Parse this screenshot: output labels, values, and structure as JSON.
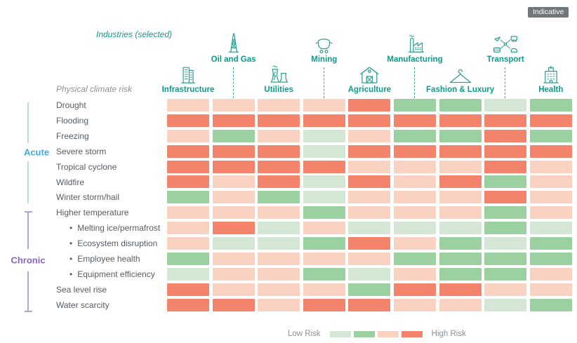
{
  "badge_label": "Indicative",
  "header": {
    "industries_label": "Industries (selected)",
    "risk_label": "Physical climate risk"
  },
  "industries": [
    {
      "name": "Infrastructure",
      "icon": "infrastructure-building-icon",
      "tier": "lower",
      "col": 1
    },
    {
      "name": "Oil and Gas",
      "icon": "oil-derrick-icon",
      "tier": "upper",
      "col": 2
    },
    {
      "name": "Utilities",
      "icon": "power-plant-icon",
      "tier": "lower",
      "col": 3
    },
    {
      "name": "Mining",
      "icon": "mine-cart-icon",
      "tier": "upper",
      "col": 4
    },
    {
      "name": "Agriculture",
      "icon": "barn-icon",
      "tier": "lower",
      "col": 5
    },
    {
      "name": "Manufacturing",
      "icon": "factory-icon",
      "tier": "upper",
      "col": 6
    },
    {
      "name": "Fashion & Luxury",
      "icon": "hanger-icon",
      "tier": "lower",
      "col": 7
    },
    {
      "name": "Transport",
      "icon": "transport-network-icon",
      "tier": "upper",
      "col": 8
    },
    {
      "name": "Health",
      "icon": "hospital-icon",
      "tier": "lower",
      "col": 9
    }
  ],
  "groups": [
    {
      "name": "Acute",
      "text_color": "#42a9dc",
      "line_color": "#bcd9e6",
      "rows": "1-7"
    },
    {
      "name": "Chronic",
      "text_color": "#8a63c1",
      "line_color": "#b7a3d8",
      "rows": "8-14"
    }
  ],
  "risk_levels": {
    "1": "#d4e7d4",
    "2": "#9bd0a0",
    "3": "#fad2c2",
    "4": "#f3836b"
  },
  "chart_data": {
    "type": "heatmap",
    "title": "",
    "note": "Indicative",
    "columns": [
      "Infrastructure",
      "Oil and Gas",
      "Utilities",
      "Mining",
      "Agriculture",
      "Manufacturing",
      "Fashion & Luxury",
      "Transport",
      "Health"
    ],
    "value_scale": "1 = lowest risk (pale green), 2 = low risk (green), 3 = elevated risk (pale salmon), 4 = highest risk (salmon red)",
    "rows": [
      {
        "label": "Drought",
        "group": "Acute",
        "indent": false,
        "values": [
          3,
          3,
          3,
          3,
          4,
          2,
          2,
          1,
          2
        ]
      },
      {
        "label": "Flooding",
        "group": "Acute",
        "indent": false,
        "values": [
          4,
          4,
          4,
          4,
          4,
          4,
          4,
          4,
          4
        ]
      },
      {
        "label": "Freezing",
        "group": "Acute",
        "indent": false,
        "values": [
          3,
          2,
          3,
          1,
          3,
          2,
          2,
          4,
          2
        ]
      },
      {
        "label": "Severe storm",
        "group": "Acute",
        "indent": false,
        "values": [
          4,
          4,
          4,
          1,
          4,
          4,
          4,
          4,
          4
        ]
      },
      {
        "label": "Tropical cyclone",
        "group": "Acute",
        "indent": false,
        "values": [
          4,
          4,
          4,
          4,
          3,
          3,
          3,
          4,
          3
        ]
      },
      {
        "label": "Wildfire",
        "group": "Acute",
        "indent": false,
        "values": [
          4,
          3,
          4,
          1,
          4,
          3,
          4,
          2,
          3
        ]
      },
      {
        "label": "Winter storm/hail",
        "group": "Acute",
        "indent": false,
        "values": [
          2,
          3,
          2,
          1,
          3,
          3,
          3,
          4,
          3
        ]
      },
      {
        "label": "Higher temperature",
        "group": "Chronic",
        "indent": false,
        "values": [
          3,
          3,
          3,
          2,
          3,
          3,
          3,
          2,
          3
        ]
      },
      {
        "label": "Melting ice/permafrost",
        "group": "Chronic",
        "indent": true,
        "values": [
          3,
          4,
          1,
          3,
          1,
          1,
          1,
          2,
          1
        ]
      },
      {
        "label": "Ecosystem disruption",
        "group": "Chronic",
        "indent": true,
        "values": [
          3,
          1,
          1,
          2,
          4,
          3,
          2,
          1,
          2
        ]
      },
      {
        "label": "Employee health",
        "group": "Chronic",
        "indent": true,
        "values": [
          2,
          3,
          3,
          3,
          3,
          2,
          2,
          2,
          2
        ]
      },
      {
        "label": "Equipment efficiency",
        "group": "Chronic",
        "indent": true,
        "values": [
          1,
          3,
          3,
          2,
          1,
          3,
          2,
          2,
          3
        ]
      },
      {
        "label": "Sea level rise",
        "group": "Chronic",
        "indent": false,
        "values": [
          4,
          3,
          3,
          3,
          2,
          4,
          4,
          3,
          3
        ]
      },
      {
        "label": "Water scarcity",
        "group": "Chronic",
        "indent": false,
        "values": [
          4,
          4,
          3,
          4,
          4,
          3,
          3,
          1,
          2
        ]
      }
    ],
    "legend_position": "bottom-center"
  },
  "legend": {
    "low_label": "Low Risk",
    "high_label": "High Risk",
    "colors": [
      "#d4e7d4",
      "#9bd0a0",
      "#fad2c2",
      "#f3836b"
    ]
  }
}
